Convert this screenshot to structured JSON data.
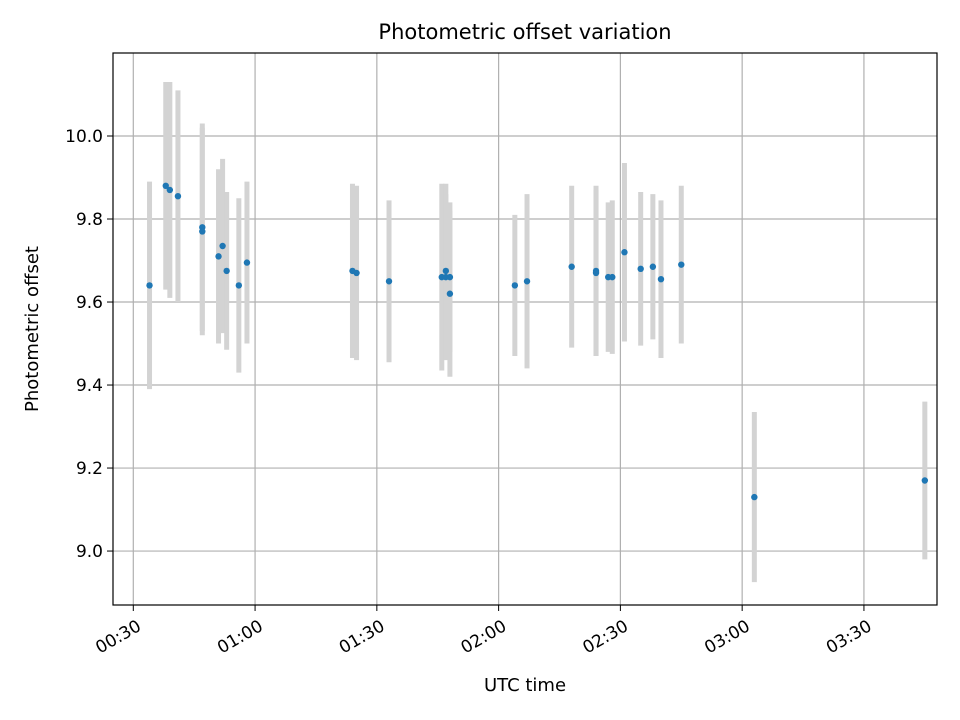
{
  "chart_data": {
    "type": "scatter",
    "title": "Photometric offset variation",
    "xlabel": "UTC time",
    "ylabel": "Photometric offset",
    "xlim": [
      "00:25",
      "03:48"
    ],
    "ylim": [
      8.87,
      10.2
    ],
    "x_ticks": [
      "00:30",
      "01:00",
      "01:30",
      "02:00",
      "02:30",
      "03:00",
      "03:30"
    ],
    "y_ticks": [
      "9.0",
      "9.2",
      "9.4",
      "9.6",
      "9.8",
      "10.0"
    ],
    "grid": true,
    "colors": {
      "point": "#1f77b4",
      "errorbar": "#d3d3d3",
      "grid": "#b0b0b0"
    },
    "points": [
      {
        "x": "00:34",
        "y": 9.64,
        "yerr": 0.25
      },
      {
        "x": "00:38",
        "y": 9.88,
        "yerr": 0.25
      },
      {
        "x": "00:39",
        "y": 9.87,
        "yerr": 0.26
      },
      {
        "x": "00:41",
        "y": 9.855,
        "yerr": 0.255
      },
      {
        "x": "00:47",
        "y": 9.78,
        "yerr": 0.25
      },
      {
        "x": "00:47",
        "y": 9.77,
        "yerr": 0.25
      },
      {
        "x": "00:51",
        "y": 9.71,
        "yerr": 0.21
      },
      {
        "x": "00:52",
        "y": 9.735,
        "yerr": 0.21
      },
      {
        "x": "00:53",
        "y": 9.675,
        "yerr": 0.19
      },
      {
        "x": "00:56",
        "y": 9.64,
        "yerr": 0.21
      },
      {
        "x": "00:58",
        "y": 9.695,
        "yerr": 0.195
      },
      {
        "x": "01:24",
        "y": 9.675,
        "yerr": 0.21
      },
      {
        "x": "01:25",
        "y": 9.67,
        "yerr": 0.21
      },
      {
        "x": "01:33",
        "y": 9.65,
        "yerr": 0.195
      },
      {
        "x": "01:46",
        "y": 9.66,
        "yerr": 0.225
      },
      {
        "x": "01:47",
        "y": 9.675,
        "yerr": 0.21
      },
      {
        "x": "01:47",
        "y": 9.66,
        "yerr": 0.2
      },
      {
        "x": "01:48",
        "y": 9.66,
        "yerr": 0.18
      },
      {
        "x": "01:48",
        "y": 9.62,
        "yerr": 0.2
      },
      {
        "x": "02:04",
        "y": 9.64,
        "yerr": 0.17
      },
      {
        "x": "02:07",
        "y": 9.65,
        "yerr": 0.21
      },
      {
        "x": "02:18",
        "y": 9.685,
        "yerr": 0.195
      },
      {
        "x": "02:24",
        "y": 9.675,
        "yerr": 0.205
      },
      {
        "x": "02:24",
        "y": 9.67,
        "yerr": 0.2
      },
      {
        "x": "02:27",
        "y": 9.66,
        "yerr": 0.18
      },
      {
        "x": "02:28",
        "y": 9.66,
        "yerr": 0.185
      },
      {
        "x": "02:31",
        "y": 9.72,
        "yerr": 0.215
      },
      {
        "x": "02:35",
        "y": 9.68,
        "yerr": 0.185
      },
      {
        "x": "02:38",
        "y": 9.685,
        "yerr": 0.175
      },
      {
        "x": "02:40",
        "y": 9.655,
        "yerr": 0.19
      },
      {
        "x": "02:45",
        "y": 9.69,
        "yerr": 0.19
      },
      {
        "x": "03:03",
        "y": 9.13,
        "yerr": 0.205
      },
      {
        "x": "03:45",
        "y": 9.17,
        "yerr": 0.19
      }
    ]
  }
}
